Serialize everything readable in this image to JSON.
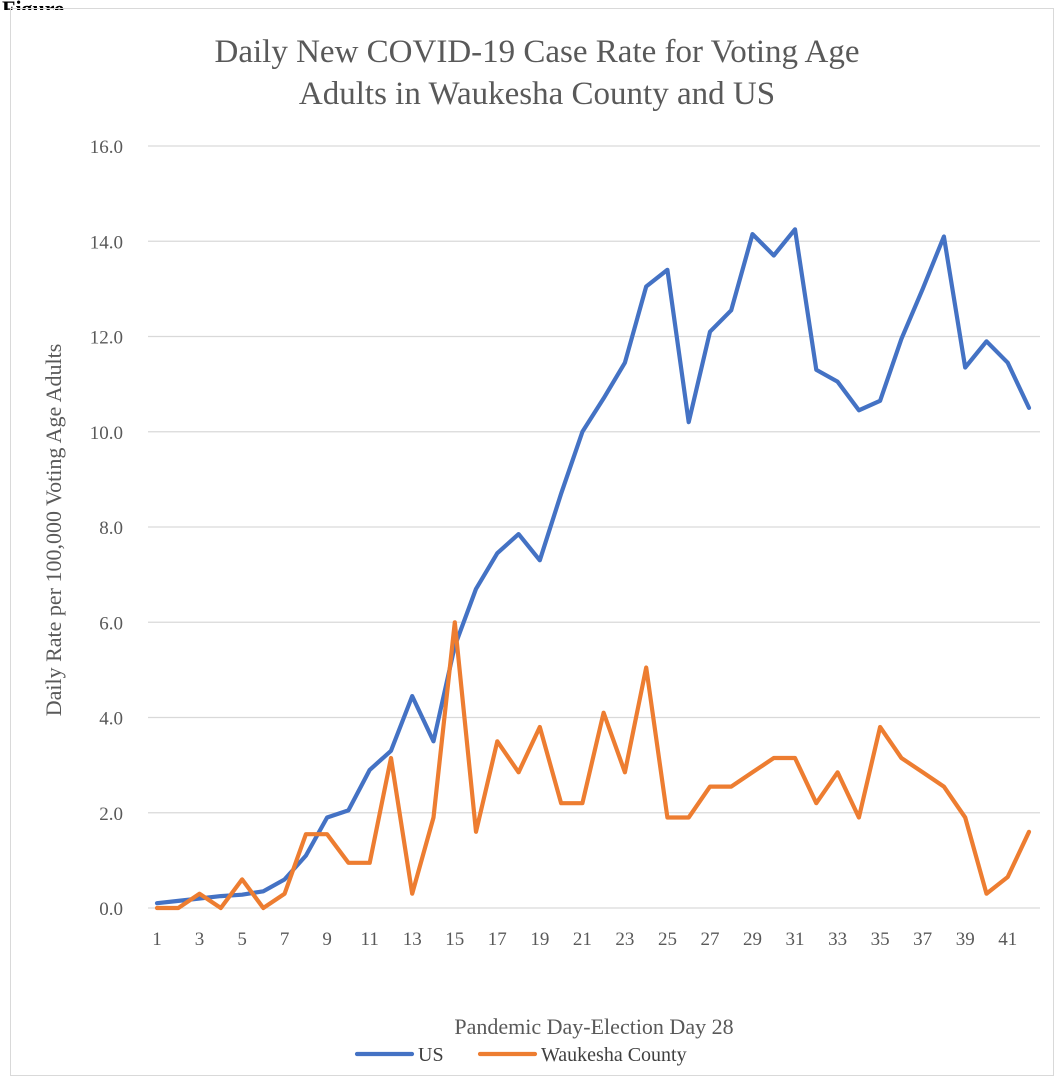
{
  "page": {
    "label": "Figure"
  },
  "colors": {
    "us": "#4472c4",
    "waukesha": "#ed7d31",
    "grid": "#d9d9d9",
    "text": "#595959"
  },
  "chart_data": {
    "type": "line",
    "title_line1": "Daily New COVID-19 Case Rate for Voting Age",
    "title_line2": "Adults in Waukesha County and US",
    "xlabel": "Pandemic Day-Election Day 28",
    "ylabel": "Daily Rate per 100,000 Voting Age Adults",
    "ylim": [
      0,
      16
    ],
    "yticks": [
      "0.0",
      "2.0",
      "4.0",
      "6.0",
      "8.0",
      "10.0",
      "12.0",
      "14.0",
      "16.0"
    ],
    "x": [
      1,
      2,
      3,
      4,
      5,
      6,
      7,
      8,
      9,
      10,
      11,
      12,
      13,
      14,
      15,
      16,
      17,
      18,
      19,
      20,
      21,
      22,
      23,
      24,
      25,
      26,
      27,
      28,
      29,
      30,
      31,
      32,
      33,
      34,
      35,
      36,
      37,
      38,
      39,
      40,
      41,
      42
    ],
    "xticks": [
      "1",
      "3",
      "5",
      "7",
      "9",
      "11",
      "13",
      "15",
      "17",
      "19",
      "21",
      "23",
      "25",
      "27",
      "29",
      "31",
      "33",
      "35",
      "37",
      "39",
      "41"
    ],
    "grid": "horizontal",
    "legend_position": "bottom",
    "series": [
      {
        "name": "US",
        "color_key": "us",
        "values": [
          0.1,
          0.15,
          0.2,
          0.25,
          0.28,
          0.35,
          0.6,
          1.1,
          1.9,
          2.05,
          2.9,
          3.3,
          4.45,
          3.5,
          5.5,
          6.7,
          7.45,
          7.85,
          7.3,
          8.7,
          10.0,
          10.7,
          11.45,
          13.05,
          13.4,
          10.2,
          12.1,
          12.55,
          14.15,
          13.7,
          14.25,
          11.3,
          11.05,
          10.45,
          10.65,
          11.95,
          13.0,
          14.1,
          11.35,
          11.9,
          11.45,
          10.5
        ]
      },
      {
        "name": "Waukesha County",
        "color_key": "waukesha",
        "values": [
          0.0,
          0.0,
          0.3,
          0.0,
          0.6,
          0.0,
          0.3,
          1.55,
          1.55,
          0.95,
          0.95,
          3.15,
          0.3,
          1.9,
          6.0,
          1.6,
          3.5,
          2.85,
          3.8,
          2.2,
          2.2,
          4.1,
          2.85,
          5.05,
          1.9,
          1.9,
          2.55,
          2.55,
          2.85,
          3.15,
          3.15,
          2.2,
          2.85,
          1.9,
          3.8,
          3.15,
          2.85,
          2.55,
          1.9,
          0.3,
          0.65,
          1.6
        ]
      }
    ]
  }
}
